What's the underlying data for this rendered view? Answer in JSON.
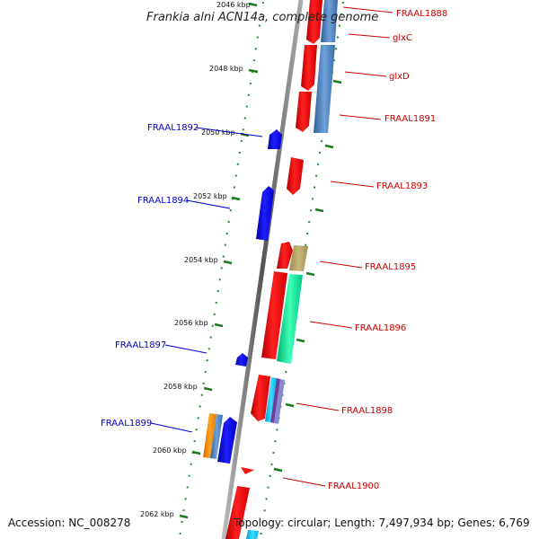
{
  "title": "Frankia alni ACN14a, complete genome",
  "footer": {
    "accession": "Accession: NC_008278",
    "topology": "Topology: circular; Length: 7,497,934 bp; Genes: 6,769"
  },
  "colors": {
    "backbone": "#888888",
    "ticks": "#1a7a1a",
    "forward_label": "#cc0000",
    "reverse_label": "#0000cc"
  },
  "scale_labels": [
    "2046 kbp",
    "2048 kbp",
    "2050 kbp",
    "2052 kbp",
    "2054 kbp",
    "2056 kbp",
    "2058 kbp",
    "2060 kbp",
    "2062 kbp"
  ],
  "gene_labels_forward": [
    "FRAAL1888",
    "glxC",
    "glxD",
    "FRAAL1891",
    "FRAAL1893",
    "FRAAL1895",
    "FRAAL1896",
    "FRAAL1898",
    "FRAAL1900"
  ],
  "gene_labels_reverse": [
    "FRAAL1892",
    "FRAAL1894",
    "FRAAL1897",
    "FRAAL1899"
  ]
}
